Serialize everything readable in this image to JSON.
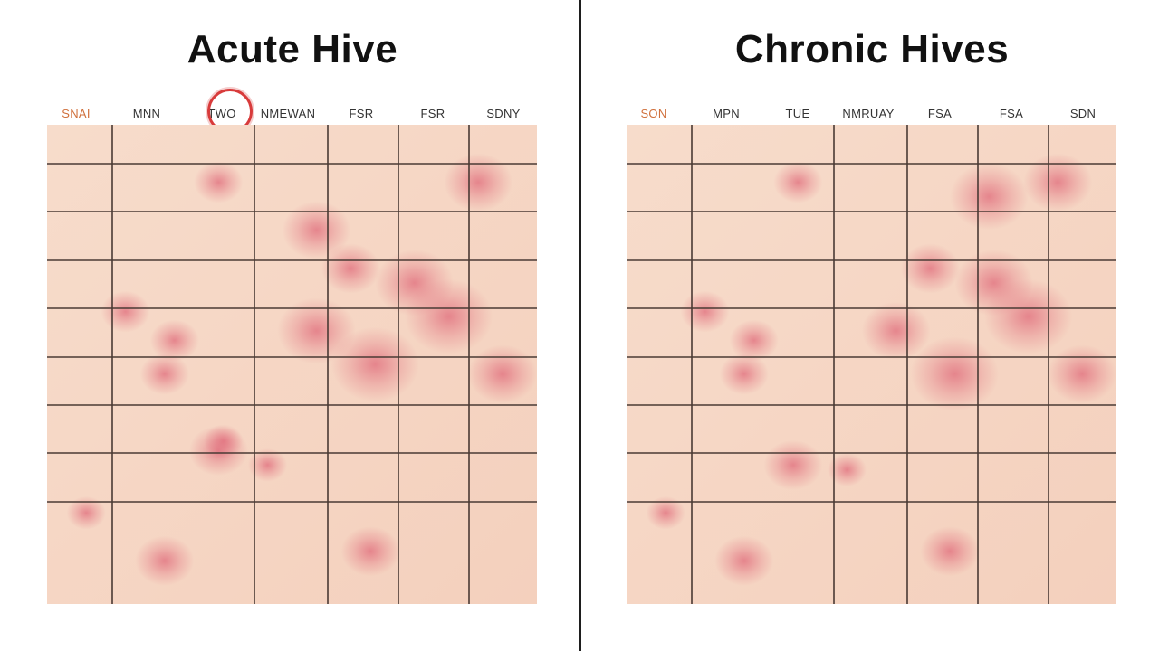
{
  "panels": [
    {
      "title": "Acute Hive",
      "days": [
        "SNAI",
        "MNN",
        "TWO",
        "NMEWAN",
        "FSR",
        "FSR",
        "SDNY"
      ],
      "accent_day": 0,
      "circled_day": 2,
      "patches": [
        [
          0.35,
          0.12,
          0.05
        ],
        [
          0.55,
          0.22,
          0.07
        ],
        [
          0.88,
          0.12,
          0.07
        ],
        [
          0.62,
          0.3,
          0.06
        ],
        [
          0.75,
          0.33,
          0.08
        ],
        [
          0.82,
          0.4,
          0.09
        ],
        [
          0.16,
          0.39,
          0.05
        ],
        [
          0.26,
          0.45,
          0.05
        ],
        [
          0.55,
          0.43,
          0.08
        ],
        [
          0.67,
          0.5,
          0.09
        ],
        [
          0.93,
          0.52,
          0.07
        ],
        [
          0.24,
          0.52,
          0.05
        ],
        [
          0.35,
          0.68,
          0.06
        ],
        [
          0.45,
          0.71,
          0.04
        ],
        [
          0.08,
          0.81,
          0.04
        ],
        [
          0.24,
          0.91,
          0.06
        ],
        [
          0.66,
          0.89,
          0.06
        ],
        [
          0.36,
          0.66,
          0.04
        ]
      ]
    },
    {
      "title": "Chronic Hives",
      "days": [
        "SON",
        "MPN",
        "TUE",
        "NMRUAY",
        "FSA",
        "FSA",
        "SDN"
      ],
      "accent_day": 0,
      "circled_day": null,
      "patches": [
        [
          0.35,
          0.12,
          0.05
        ],
        [
          0.74,
          0.15,
          0.08
        ],
        [
          0.88,
          0.12,
          0.07
        ],
        [
          0.62,
          0.3,
          0.06
        ],
        [
          0.75,
          0.33,
          0.08
        ],
        [
          0.82,
          0.4,
          0.09
        ],
        [
          0.16,
          0.39,
          0.05
        ],
        [
          0.26,
          0.45,
          0.05
        ],
        [
          0.55,
          0.43,
          0.07
        ],
        [
          0.67,
          0.52,
          0.09
        ],
        [
          0.93,
          0.52,
          0.07
        ],
        [
          0.24,
          0.52,
          0.05
        ],
        [
          0.34,
          0.71,
          0.06
        ],
        [
          0.45,
          0.72,
          0.04
        ],
        [
          0.08,
          0.81,
          0.04
        ],
        [
          0.24,
          0.91,
          0.06
        ],
        [
          0.66,
          0.89,
          0.06
        ]
      ]
    }
  ],
  "colors": {
    "skin": "#f4d0bd",
    "skin_light": "#f7dccb",
    "grid_line": "#4a3a34",
    "welt": "#e06a7a",
    "circle": "#d83b3b",
    "accent_text": "#d0703c"
  }
}
